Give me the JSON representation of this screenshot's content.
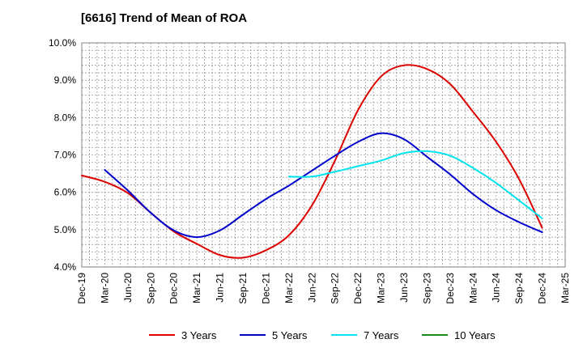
{
  "chart_data": {
    "type": "line",
    "title": "[6616]  Trend of Mean of ROA",
    "xlabel": "",
    "ylabel": "",
    "ylim": [
      4.0,
      10.0
    ],
    "y_ticks": [
      "4.0%",
      "5.0%",
      "6.0%",
      "7.0%",
      "8.0%",
      "9.0%",
      "10.0%"
    ],
    "categories": [
      "Dec-19",
      "Mar-20",
      "Jun-20",
      "Sep-20",
      "Dec-20",
      "Mar-21",
      "Jun-21",
      "Sep-21",
      "Dec-21",
      "Mar-22",
      "Jun-22",
      "Sep-22",
      "Dec-22",
      "Mar-23",
      "Jun-23",
      "Sep-23",
      "Dec-23",
      "Mar-24",
      "Jun-24",
      "Sep-24",
      "Dec-24",
      "Mar-25"
    ],
    "grid": true,
    "legend_position": "bottom",
    "series": [
      {
        "name": "3 Years",
        "color": "#dd0000",
        "values": [
          6.45,
          6.28,
          5.98,
          5.45,
          4.95,
          4.62,
          4.32,
          4.25,
          4.45,
          4.85,
          5.65,
          6.85,
          8.2,
          9.1,
          9.4,
          9.3,
          8.9,
          8.15,
          7.35,
          6.35,
          5.05,
          null
        ]
      },
      {
        "name": "5 Years",
        "color": "#0000cc",
        "values": [
          null,
          6.6,
          6.05,
          5.45,
          4.98,
          4.8,
          4.98,
          5.4,
          5.82,
          6.18,
          6.58,
          6.98,
          7.35,
          7.58,
          7.42,
          6.95,
          6.48,
          5.95,
          5.52,
          5.2,
          4.93,
          null
        ]
      },
      {
        "name": "7 Years",
        "color": "#00e5ee",
        "values": [
          null,
          null,
          null,
          null,
          null,
          null,
          null,
          null,
          null,
          6.42,
          6.42,
          6.55,
          6.7,
          6.85,
          7.05,
          7.1,
          6.98,
          6.65,
          6.25,
          5.78,
          5.3,
          null
        ]
      },
      {
        "name": "10 Years",
        "color": "#1a8c1a",
        "values": [
          null,
          null,
          null,
          null,
          null,
          null,
          null,
          null,
          null,
          null,
          null,
          null,
          null,
          null,
          null,
          null,
          null,
          null,
          null,
          null,
          null,
          null
        ]
      }
    ]
  }
}
